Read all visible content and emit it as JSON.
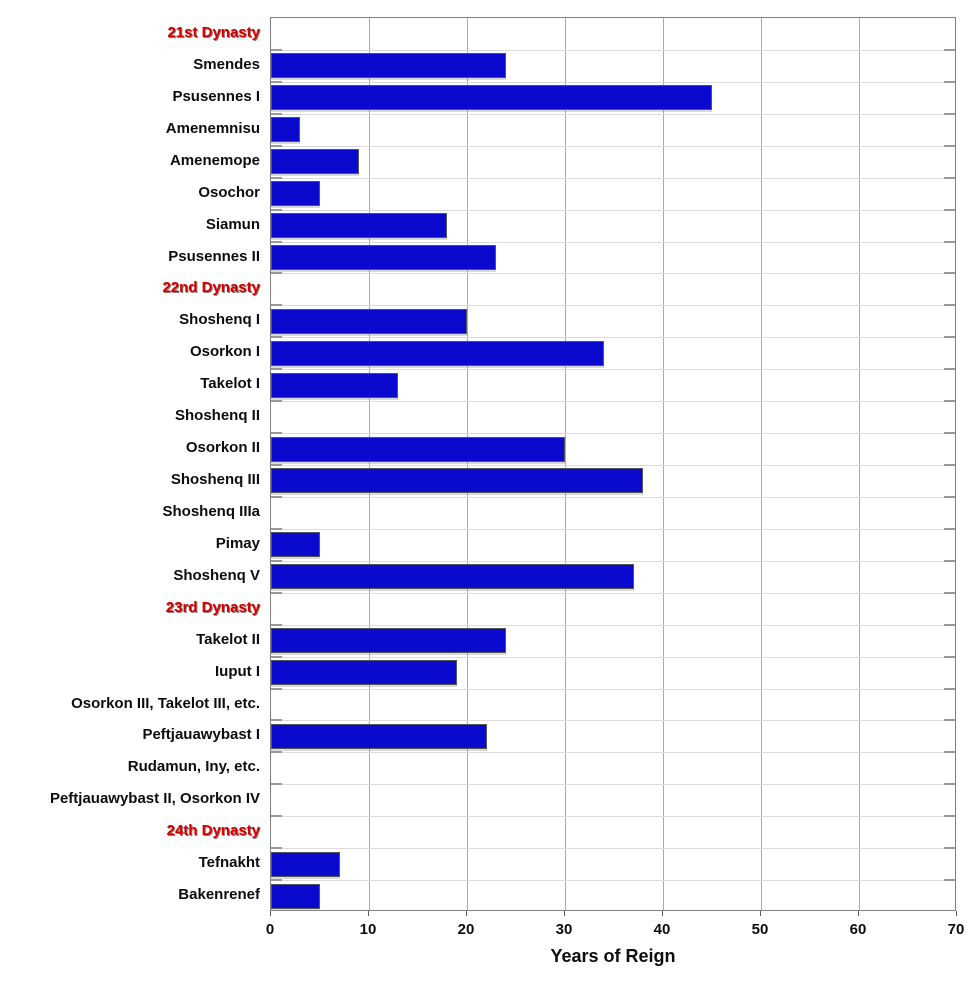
{
  "chart_data": {
    "type": "bar",
    "orientation": "horizontal",
    "title": "",
    "xlabel": "Years of Reign",
    "ylabel": "",
    "xlim": [
      0,
      70
    ],
    "xticks": [
      0,
      10,
      20,
      30,
      40,
      50,
      60,
      70
    ],
    "grid": "both",
    "legend": "none",
    "colors": {
      "bar_fill": "#0a0ace",
      "bar_border": "#565656",
      "dynasty_label": "#d40000",
      "category_label": "#0d0d0d",
      "frame": "#7f7f7f",
      "vgrid": "#a9a9a9",
      "hgrid": "#dcdcdc",
      "background": "#ffffff"
    },
    "rows": [
      {
        "label": "21st Dynasty",
        "header": true,
        "value": null
      },
      {
        "label": "Smendes",
        "header": false,
        "value": 24
      },
      {
        "label": "Psusennes I",
        "header": false,
        "value": 45
      },
      {
        "label": "Amenemnisu",
        "header": false,
        "value": 3
      },
      {
        "label": "Amenemope",
        "header": false,
        "value": 9
      },
      {
        "label": "Osochor",
        "header": false,
        "value": 5
      },
      {
        "label": "Siamun",
        "header": false,
        "value": 18
      },
      {
        "label": "Psusennes II",
        "header": false,
        "value": 23
      },
      {
        "label": "22nd Dynasty",
        "header": true,
        "value": null
      },
      {
        "label": "Shoshenq I",
        "header": false,
        "value": 20
      },
      {
        "label": "Osorkon I",
        "header": false,
        "value": 34
      },
      {
        "label": "Takelot I",
        "header": false,
        "value": 13
      },
      {
        "label": "Shoshenq II",
        "header": false,
        "value": 0
      },
      {
        "label": "Osorkon II",
        "header": false,
        "value": 30
      },
      {
        "label": "Shoshenq III",
        "header": false,
        "value": 38
      },
      {
        "label": "Shoshenq IIIa",
        "header": false,
        "value": 0
      },
      {
        "label": "Pimay",
        "header": false,
        "value": 5
      },
      {
        "label": "Shoshenq V",
        "header": false,
        "value": 37
      },
      {
        "label": "23rd Dynasty",
        "header": true,
        "value": null
      },
      {
        "label": "Takelot II",
        "header": false,
        "value": 24
      },
      {
        "label": "Iuput I",
        "header": false,
        "value": 19
      },
      {
        "label": "Osorkon III, Takelot III, etc.",
        "header": false,
        "value": 0
      },
      {
        "label": "Peftjauawybast I",
        "header": false,
        "value": 22
      },
      {
        "label": "Rudamun, Iny, etc.",
        "header": false,
        "value": 0
      },
      {
        "label": "Peftjauawybast II, Osorkon IV",
        "header": false,
        "value": 0
      },
      {
        "label": "24th Dynasty",
        "header": true,
        "value": null
      },
      {
        "label": "Tefnakht",
        "header": false,
        "value": 7
      },
      {
        "label": "Bakenrenef",
        "header": false,
        "value": 5
      }
    ]
  }
}
